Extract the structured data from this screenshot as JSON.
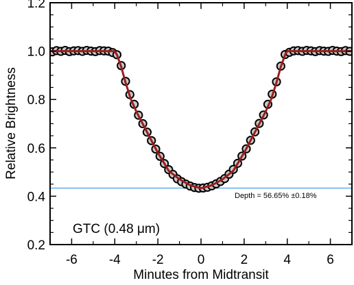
{
  "chart_data": {
    "type": "scatter",
    "xlabel": "Minutes from Midtransit",
    "ylabel": "Relative Brightness",
    "xlim": [
      -7,
      7
    ],
    "ylim": [
      0.2,
      1.2
    ],
    "x_ticks": [
      -6,
      -4,
      -2,
      0,
      2,
      4,
      6
    ],
    "y_ticks": [
      0.2,
      0.4,
      0.6,
      0.8,
      1.0,
      1.2
    ],
    "x_tick_labels": [
      "-6",
      "-4",
      "-2",
      "0",
      "2",
      "4",
      "6"
    ],
    "y_tick_labels": [
      "0.2",
      "0.4",
      "0.6",
      "0.8",
      "1.0",
      "1.2"
    ],
    "grid": false,
    "annotations": {
      "instrument": "GTC  (0.48 μm)",
      "depth": "Depth = 56.65% ±0.18%"
    },
    "colors": {
      "model_line": "#9a1d1d",
      "depth_line": "#58a6e6",
      "marker_fill": "#c8c8c8",
      "marker_edge": "#000000"
    },
    "depth_level": 0.4335,
    "model": {
      "x": [
        -7.0,
        -4.0,
        -3.9,
        -3.7,
        -3.5,
        -3.25,
        -3.0,
        -2.5,
        -2.0,
        -1.5,
        -1.0,
        -0.5,
        0.0,
        0.5,
        1.0,
        1.5,
        2.0,
        2.5,
        3.0,
        3.25,
        3.5,
        3.7,
        3.9,
        4.0,
        7.0
      ],
      "y": [
        1.0,
        1.0,
        0.985,
        0.935,
        0.87,
        0.8,
        0.75,
        0.665,
        0.58,
        0.505,
        0.47,
        0.445,
        0.433,
        0.445,
        0.47,
        0.505,
        0.58,
        0.665,
        0.75,
        0.8,
        0.87,
        0.935,
        0.985,
        1.0,
        1.0
      ]
    },
    "series": [
      {
        "x": [
          -6.9,
          -6.7,
          -6.5,
          -6.3,
          -6.1,
          -5.9,
          -5.7,
          -5.5,
          -5.3,
          -5.1,
          -4.9,
          -4.7,
          -4.5,
          -4.3,
          -4.1,
          -3.9,
          -3.7,
          -3.5,
          -3.3,
          -3.1,
          -2.9,
          -2.7,
          -2.5,
          -2.3,
          -2.1,
          -1.9,
          -1.7,
          -1.5,
          -1.3,
          -1.1,
          -0.9,
          -0.7,
          -0.5,
          -0.3,
          -0.1,
          0.1,
          0.3,
          0.5,
          0.7,
          0.9,
          1.1,
          1.3,
          1.5,
          1.7,
          1.9,
          2.1,
          2.3,
          2.5,
          2.7,
          2.9,
          3.1,
          3.3,
          3.5,
          3.7,
          3.9,
          4.1,
          4.3,
          4.5,
          4.7,
          4.9,
          5.1,
          5.3,
          5.5,
          5.7,
          5.9,
          6.1,
          6.3,
          6.5,
          6.7,
          6.9
        ],
        "y": [
          0.997,
          1.002,
          0.999,
          1.003,
          0.998,
          1.001,
          1.002,
          0.999,
          1.003,
          1.0,
          0.998,
          1.002,
          1.001,
          1.0,
          0.994,
          0.985,
          0.94,
          0.875,
          0.82,
          0.78,
          0.735,
          0.7,
          0.665,
          0.63,
          0.595,
          0.565,
          0.535,
          0.51,
          0.49,
          0.472,
          0.46,
          0.45,
          0.442,
          0.436,
          0.433,
          0.434,
          0.437,
          0.443,
          0.451,
          0.461,
          0.473,
          0.491,
          0.511,
          0.536,
          0.566,
          0.596,
          0.631,
          0.666,
          0.701,
          0.736,
          0.78,
          0.822,
          0.873,
          0.938,
          0.986,
          0.995,
          1.001,
          1.002,
          0.999,
          1.003,
          1.001,
          0.998,
          1.002,
          1.0,
          0.999,
          1.003,
          1.0,
          0.998,
          1.002,
          0.999
        ]
      }
    ]
  }
}
